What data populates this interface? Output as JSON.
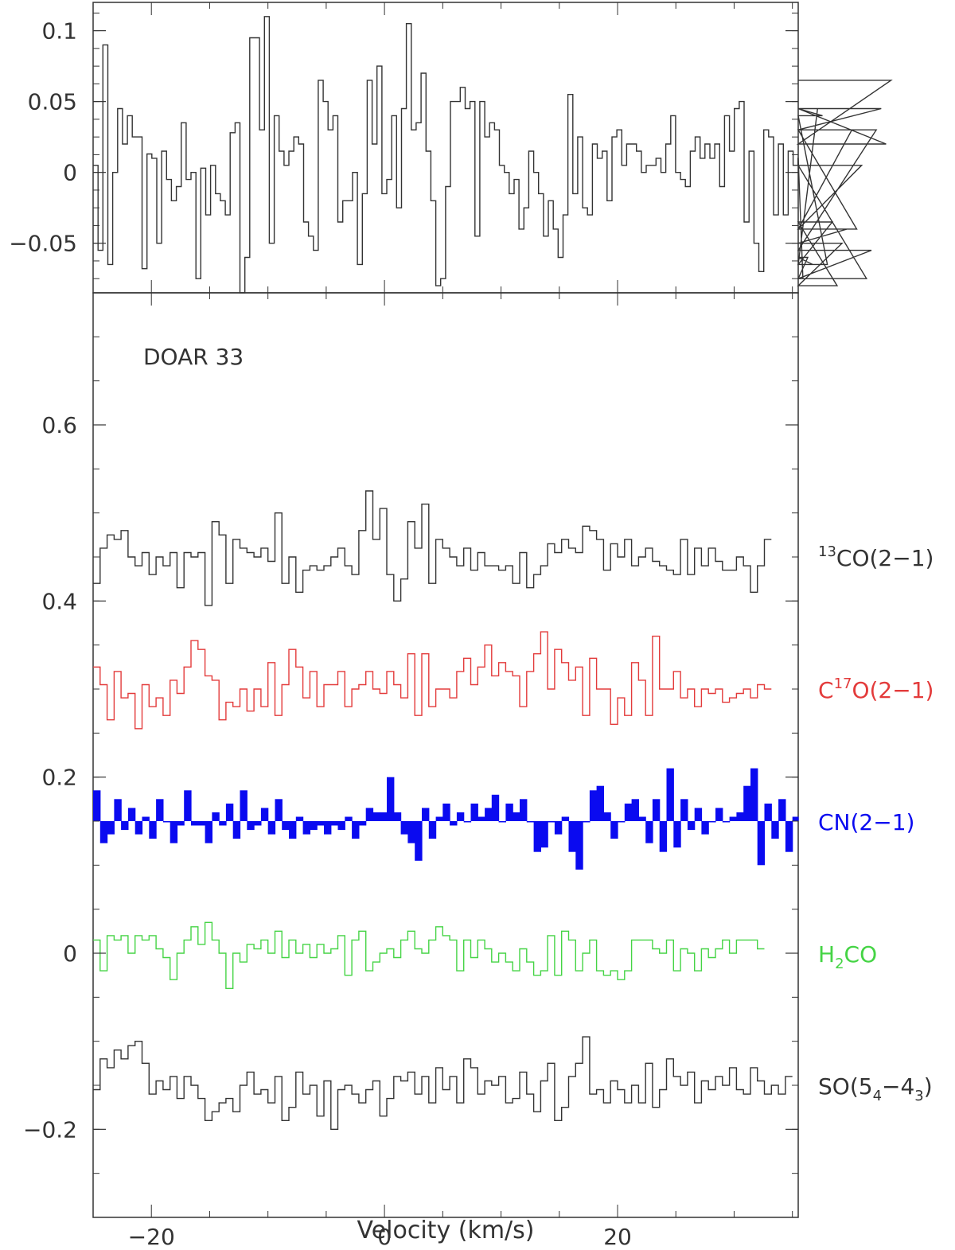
{
  "chart_data": [
    {
      "panel": "top",
      "type": "line",
      "step": true,
      "title": "",
      "xlabel": "",
      "ylabel": "",
      "xlim": [
        -25,
        35.5
      ],
      "ylim": [
        -0.085,
        0.12
      ],
      "yticks": [
        -0.05,
        0,
        0.05,
        0.1
      ],
      "ytick_labels": [
        "−0.05",
        "0",
        "0.05",
        "0.1"
      ],
      "grid": false,
      "series": [
        {
          "color": "#333333",
          "x0": -25.0,
          "dx": 0.42,
          "values": [
            0.005,
            -0.055,
            0.09,
            -0.065,
            0.0,
            0.045,
            0.02,
            0.04,
            0.025,
            0.025,
            -0.068,
            0.013,
            0.01,
            -0.05,
            0.015,
            -0.005,
            -0.02,
            -0.01,
            0.035,
            -0.005,
            0.0,
            -0.075,
            0.003,
            -0.03,
            0.005,
            -0.015,
            -0.02,
            -0.03,
            0.028,
            0.035,
            -0.085,
            -0.06,
            0.095,
            0.095,
            0.03,
            0.11,
            -0.05,
            0.04,
            0.015,
            0.005,
            0.015,
            0.025,
            0.02,
            -0.035,
            -0.045,
            -0.055,
            0.065,
            0.05,
            0.03,
            0.04,
            -0.035,
            -0.02,
            -0.02,
            0.0,
            -0.065,
            -0.015,
            0.065,
            0.02,
            0.075,
            -0.015,
            -0.005,
            0.04,
            -0.025,
            0.045,
            0.105,
            0.03,
            0.035,
            0.07,
            0.015,
            -0.02,
            -0.08,
            -0.075,
            -0.01,
            0.05,
            0.05,
            0.06,
            0.045,
            0.05,
            -0.045,
            0.05,
            0.025,
            0.035,
            0.03,
            0.005,
            0.0,
            -0.015,
            -0.005,
            -0.04,
            -0.025,
            0.015,
            0.0,
            -0.015,
            -0.045,
            -0.02,
            -0.04,
            -0.06,
            -0.03,
            0.055,
            -0.015,
            0.025,
            -0.025,
            -0.03,
            0.02,
            0.01,
            0.015,
            -0.02,
            0.025,
            0.03,
            0.005,
            0.02,
            0.02,
            0.015,
            0.0,
            0.005,
            0.005,
            0.01,
            0.0,
            0.02,
            0.04,
            0.0,
            -0.005,
            -0.01,
            0.015,
            0.025,
            0.01,
            0.02,
            0.01,
            0.02,
            -0.01,
            0.04,
            0.015,
            0.045,
            0.05,
            -0.035,
            0.015,
            -0.05,
            -0.07,
            0.03,
            0.025,
            -0.03,
            0.02,
            -0.03,
            0.015,
            0.005,
            0.01,
            -0.075,
            -0.06,
            -0.065,
            0.045,
            0.04,
            -0.065,
            -0.035,
            -0.08,
            -0.05,
            -0.04,
            0.03,
            -0.04,
            0.005,
            -0.075,
            -0.055,
            0.03,
            0.045,
            0.02,
            0.065
          ]
        }
      ]
    },
    {
      "panel": "bottom",
      "type": "line",
      "step": true,
      "title": "DOAR 33",
      "xlabel": "Velocity (km/s)",
      "ylabel": "",
      "xlim": [
        -25,
        35.5
      ],
      "ylim": [
        -0.3,
        0.75
      ],
      "xticks": [
        -20,
        0,
        20
      ],
      "xtick_labels": [
        "−20",
        "0",
        "20"
      ],
      "yticks": [
        -0.2,
        0,
        0.2,
        0.4,
        0.6
      ],
      "ytick_labels": [
        "−0.2",
        "0",
        "0.2",
        "0.4",
        "0.6"
      ],
      "grid": false,
      "legend_placement": "right-of-each-spectrum",
      "series": [
        {
          "label_main": "CO(2−1)",
          "label_sup": "13",
          "label_prefix": "",
          "label_sub": "",
          "label_suffix": "",
          "color": "#333333",
          "fill": false,
          "baseline": 0.45,
          "x0": -25.0,
          "dx": 0.6,
          "values": [
            0.42,
            0.46,
            0.475,
            0.47,
            0.48,
            0.45,
            0.44,
            0.455,
            0.43,
            0.45,
            0.44,
            0.455,
            0.415,
            0.455,
            0.45,
            0.455,
            0.395,
            0.49,
            0.475,
            0.42,
            0.47,
            0.46,
            0.455,
            0.45,
            0.46,
            0.445,
            0.5,
            0.42,
            0.45,
            0.41,
            0.435,
            0.44,
            0.435,
            0.44,
            0.45,
            0.46,
            0.44,
            0.43,
            0.48,
            0.525,
            0.47,
            0.505,
            0.43,
            0.4,
            0.425,
            0.49,
            0.46,
            0.51,
            0.42,
            0.47,
            0.46,
            0.45,
            0.44,
            0.46,
            0.435,
            0.455,
            0.44,
            0.44,
            0.435,
            0.44,
            0.42,
            0.455,
            0.415,
            0.43,
            0.44,
            0.465,
            0.455,
            0.47,
            0.46,
            0.455,
            0.485,
            0.48,
            0.47,
            0.435,
            0.465,
            0.45,
            0.47,
            0.44,
            0.45,
            0.46,
            0.445,
            0.44,
            0.435,
            0.43,
            0.47,
            0.43,
            0.46,
            0.44,
            0.46,
            0.445,
            0.435,
            0.435,
            0.45,
            0.44,
            0.41,
            0.44,
            0.47
          ]
        },
        {
          "label_main": "O(2−1)",
          "label_sup": "17",
          "label_prefix": "C",
          "label_sub": "",
          "label_suffix": "",
          "color": "#e33b3b",
          "fill": false,
          "baseline": 0.3,
          "x0": -25.0,
          "dx": 0.6,
          "values": [
            0.325,
            0.305,
            0.265,
            0.32,
            0.29,
            0.295,
            0.255,
            0.305,
            0.28,
            0.29,
            0.27,
            0.31,
            0.295,
            0.325,
            0.355,
            0.345,
            0.315,
            0.31,
            0.265,
            0.285,
            0.28,
            0.3,
            0.275,
            0.3,
            0.28,
            0.33,
            0.27,
            0.305,
            0.345,
            0.325,
            0.29,
            0.32,
            0.28,
            0.305,
            0.305,
            0.32,
            0.28,
            0.3,
            0.305,
            0.32,
            0.3,
            0.295,
            0.32,
            0.305,
            0.29,
            0.34,
            0.27,
            0.34,
            0.28,
            0.3,
            0.3,
            0.29,
            0.32,
            0.335,
            0.305,
            0.325,
            0.35,
            0.315,
            0.33,
            0.32,
            0.315,
            0.28,
            0.32,
            0.34,
            0.365,
            0.3,
            0.345,
            0.33,
            0.31,
            0.325,
            0.27,
            0.335,
            0.3,
            0.3,
            0.26,
            0.29,
            0.27,
            0.33,
            0.31,
            0.27,
            0.36,
            0.3,
            0.3,
            0.32,
            0.29,
            0.3,
            0.28,
            0.3,
            0.295,
            0.3,
            0.285,
            0.29,
            0.295,
            0.3,
            0.29,
            0.305,
            0.3
          ]
        },
        {
          "label_main": "CN(2−1)",
          "label_sup": "",
          "label_prefix": "",
          "label_sub": "",
          "label_suffix": "",
          "color": "#0a0af0",
          "fill": true,
          "baseline": 0.15,
          "x0": -25.0,
          "dx": 0.6,
          "values": [
            0.185,
            0.125,
            0.135,
            0.175,
            0.14,
            0.165,
            0.135,
            0.155,
            0.13,
            0.175,
            0.15,
            0.125,
            0.145,
            0.185,
            0.145,
            0.145,
            0.125,
            0.16,
            0.145,
            0.17,
            0.13,
            0.185,
            0.14,
            0.145,
            0.165,
            0.135,
            0.175,
            0.14,
            0.13,
            0.155,
            0.135,
            0.14,
            0.145,
            0.135,
            0.145,
            0.14,
            0.155,
            0.13,
            0.145,
            0.165,
            0.16,
            0.16,
            0.2,
            0.16,
            0.135,
            0.125,
            0.105,
            0.165,
            0.13,
            0.155,
            0.17,
            0.145,
            0.16,
            0.15,
            0.17,
            0.155,
            0.165,
            0.18,
            0.15,
            0.17,
            0.16,
            0.175,
            0.15,
            0.115,
            0.12,
            0.15,
            0.135,
            0.155,
            0.115,
            0.095,
            0.15,
            0.185,
            0.19,
            0.16,
            0.13,
            0.15,
            0.17,
            0.175,
            0.155,
            0.125,
            0.175,
            0.115,
            0.21,
            0.12,
            0.175,
            0.14,
            0.165,
            0.135,
            0.15,
            0.165,
            0.15,
            0.155,
            0.16,
            0.19,
            0.21,
            0.1,
            0.17,
            0.13,
            0.175,
            0.115,
            0.155,
            0.12,
            0.175,
            0.135
          ]
        },
        {
          "label_main": "CO",
          "label_sup": "",
          "label_prefix": "H",
          "label_sub": "2",
          "label_suffix": "",
          "color": "#45d445",
          "fill": false,
          "baseline": 0.0,
          "x0": -25.0,
          "dx": 0.6,
          "values": [
            0.015,
            -0.02,
            0.02,
            0.015,
            0.02,
            0.0,
            0.02,
            0.015,
            0.02,
            0.005,
            -0.005,
            -0.03,
            0.0,
            0.015,
            0.03,
            0.01,
            0.035,
            0.015,
            0.0,
            -0.04,
            0.0,
            -0.01,
            0.01,
            0.005,
            0.015,
            0.0,
            0.025,
            -0.005,
            0.015,
            0.0,
            0.01,
            -0.005,
            0.01,
            0.0,
            0.005,
            0.02,
            -0.025,
            0.015,
            0.025,
            -0.02,
            -0.01,
            0.0,
            0.005,
            -0.005,
            0.015,
            0.025,
            0.005,
            0.0,
            0.015,
            0.03,
            0.02,
            0.015,
            -0.02,
            0.015,
            -0.005,
            0.015,
            0.005,
            -0.01,
            0.0,
            -0.01,
            -0.02,
            0.005,
            -0.01,
            -0.025,
            -0.02,
            0.02,
            -0.025,
            0.025,
            0.015,
            -0.02,
            0.0,
            0.015,
            -0.02,
            -0.025,
            -0.02,
            -0.03,
            -0.02,
            0.015,
            0.015,
            0.015,
            0.005,
            0.0,
            0.015,
            -0.02,
            0.005,
            0.0,
            -0.02,
            0.005,
            -0.005,
            0.005,
            0.015,
            0.0,
            0.015,
            0.015,
            0.015,
            0.005
          ]
        },
        {
          "label_main": "SO(5",
          "label_sup": "",
          "label_prefix": "",
          "label_sub": "4",
          "label_suffix": "−4|3|)",
          "color": "#333333",
          "fill": false,
          "baseline": -0.15,
          "x0": -25.0,
          "dx": 0.6,
          "values": [
            -0.155,
            -0.12,
            -0.13,
            -0.11,
            -0.12,
            -0.105,
            -0.1,
            -0.125,
            -0.16,
            -0.145,
            -0.155,
            -0.14,
            -0.165,
            -0.14,
            -0.15,
            -0.165,
            -0.19,
            -0.18,
            -0.17,
            -0.165,
            -0.18,
            -0.15,
            -0.135,
            -0.16,
            -0.155,
            -0.17,
            -0.14,
            -0.19,
            -0.175,
            -0.135,
            -0.16,
            -0.15,
            -0.185,
            -0.145,
            -0.2,
            -0.155,
            -0.15,
            -0.16,
            -0.17,
            -0.155,
            -0.145,
            -0.185,
            -0.165,
            -0.14,
            -0.145,
            -0.135,
            -0.16,
            -0.14,
            -0.17,
            -0.13,
            -0.155,
            -0.14,
            -0.17,
            -0.12,
            -0.13,
            -0.16,
            -0.145,
            -0.15,
            -0.14,
            -0.17,
            -0.165,
            -0.135,
            -0.16,
            -0.18,
            -0.145,
            -0.125,
            -0.19,
            -0.175,
            -0.14,
            -0.125,
            -0.095,
            -0.16,
            -0.155,
            -0.17,
            -0.145,
            -0.155,
            -0.17,
            -0.15,
            -0.17,
            -0.125,
            -0.175,
            -0.155,
            -0.12,
            -0.14,
            -0.15,
            -0.135,
            -0.17,
            -0.145,
            -0.155,
            -0.14,
            -0.15,
            -0.13,
            -0.155,
            -0.16,
            -0.13,
            -0.145,
            -0.16,
            -0.15,
            -0.16,
            -0.14
          ]
        }
      ]
    }
  ]
}
